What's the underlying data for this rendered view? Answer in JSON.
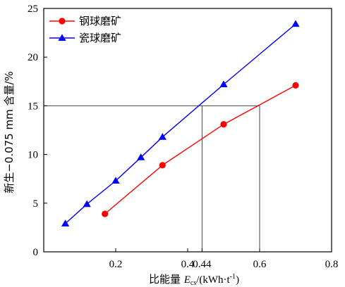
{
  "chart_data": {
    "type": "line",
    "xlabel_prefix": "比能量 ",
    "xlabel_var": "E",
    "xlabel_sub": "cs",
    "xlabel_unit_open": "/(kWh·t",
    "xlabel_sup": "-1",
    "xlabel_unit_close": ")",
    "ylabel": "新生−0.075 mm 含量/%",
    "xlim": [
      0.0,
      0.8
    ],
    "ylim": [
      0,
      25
    ],
    "x_ticks": [
      {
        "value": 0.2,
        "label": "0.2"
      },
      {
        "value": 0.4,
        "label": "0.4"
      },
      {
        "value": 0.44,
        "label": "0.44"
      },
      {
        "value": 0.6,
        "label": "0.6"
      },
      {
        "value": 0.8,
        "label": "0.8"
      }
    ],
    "y_ticks": [
      {
        "value": 0,
        "label": "0"
      },
      {
        "value": 5,
        "label": "5"
      },
      {
        "value": 10,
        "label": "10"
      },
      {
        "value": 15,
        "label": "15"
      },
      {
        "value": 20,
        "label": "20"
      },
      {
        "value": 25,
        "label": "25"
      }
    ],
    "legend_position": "top-left",
    "series": [
      {
        "name": "钢球磨矿",
        "color": "#ff0000",
        "marker": "circle",
        "points": [
          [
            0.17,
            3.9
          ],
          [
            0.33,
            8.9
          ],
          [
            0.5,
            13.1
          ],
          [
            0.7,
            17.1
          ]
        ]
      },
      {
        "name": "瓷球磨矿",
        "color": "#0000ff",
        "marker": "triangle",
        "points": [
          [
            0.06,
            2.9
          ],
          [
            0.12,
            4.9
          ],
          [
            0.2,
            7.3
          ],
          [
            0.27,
            9.7
          ],
          [
            0.33,
            11.8
          ],
          [
            0.5,
            17.2
          ],
          [
            0.7,
            23.4
          ]
        ]
      }
    ],
    "reference_lines": [
      {
        "y": 15,
        "x_intersections": [
          0.44,
          0.6
        ],
        "color": "#444444"
      }
    ]
  }
}
